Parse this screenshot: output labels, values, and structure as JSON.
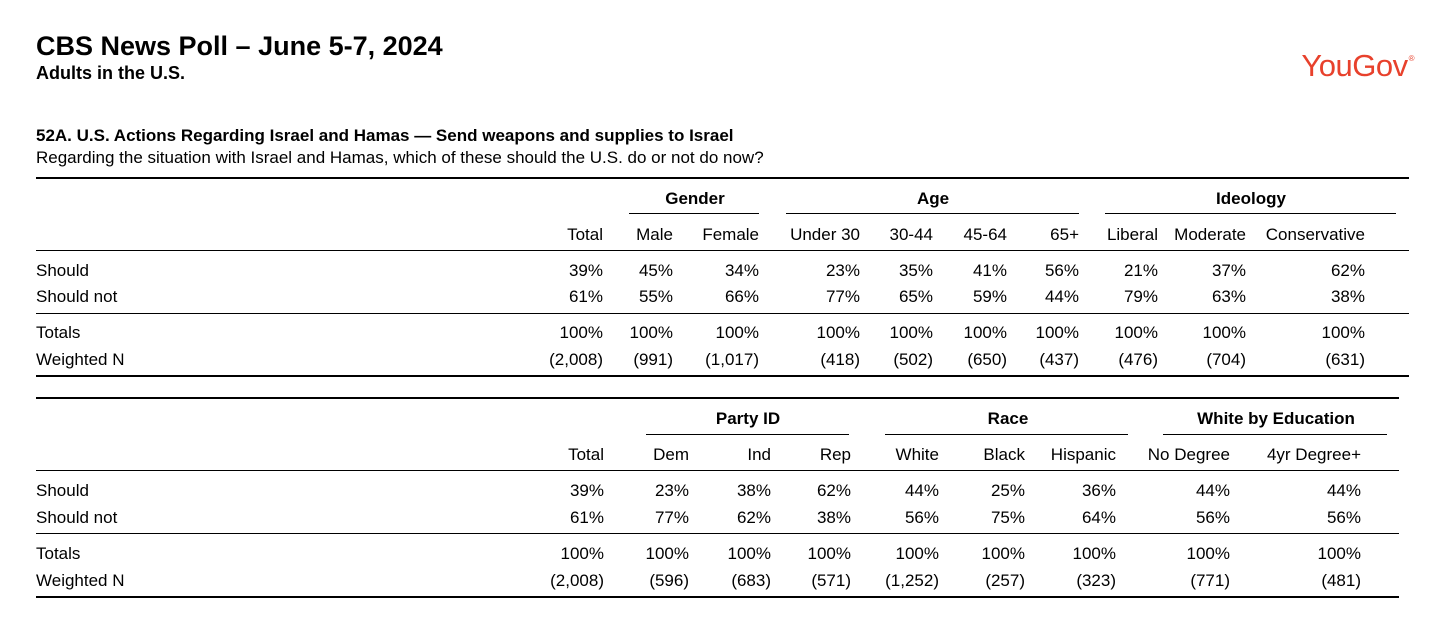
{
  "header": {
    "title": "CBS News Poll – June 5-7, 2024",
    "subtitle": "Adults in the U.S.",
    "logo_text": "YouGov",
    "logo_mark": "®",
    "brand_color": "#e8412c"
  },
  "question": {
    "title": "52A. U.S. Actions Regarding Israel and Hamas — Send weapons and supplies to Israel",
    "text": "Regarding the situation with Israel and Hamas, which of these should the U.S. do or not do now?"
  },
  "table1": {
    "groups": [
      "Gender",
      "Age",
      "Ideology"
    ],
    "columns": [
      "Total",
      "Male",
      "Female",
      "Under 30",
      "30-44",
      "45-64",
      "65+",
      "Liberal",
      "Moderate",
      "Conservative"
    ],
    "rows": [
      {
        "label": "Should",
        "values": [
          "39%",
          "45%",
          "34%",
          "23%",
          "35%",
          "41%",
          "56%",
          "21%",
          "37%",
          "62%"
        ]
      },
      {
        "label": "Should not",
        "values": [
          "61%",
          "55%",
          "66%",
          "77%",
          "65%",
          "59%",
          "44%",
          "79%",
          "63%",
          "38%"
        ]
      },
      {
        "label": "Totals",
        "values": [
          "100%",
          "100%",
          "100%",
          "100%",
          "100%",
          "100%",
          "100%",
          "100%",
          "100%",
          "100%"
        ]
      },
      {
        "label": "Weighted N",
        "values": [
          "(2,008)",
          "(991)",
          "(1,017)",
          "(418)",
          "(502)",
          "(650)",
          "(437)",
          "(476)",
          "(704)",
          "(631)"
        ]
      }
    ]
  },
  "table2": {
    "groups": [
      "Party ID",
      "Race",
      "White by Education"
    ],
    "columns": [
      "Total",
      "Dem",
      "Ind",
      "Rep",
      "White",
      "Black",
      "Hispanic",
      "No Degree",
      "4yr Degree+"
    ],
    "rows": [
      {
        "label": "Should",
        "values": [
          "39%",
          "23%",
          "38%",
          "62%",
          "44%",
          "25%",
          "36%",
          "44%",
          "44%"
        ]
      },
      {
        "label": "Should not",
        "values": [
          "61%",
          "77%",
          "62%",
          "38%",
          "56%",
          "75%",
          "64%",
          "56%",
          "56%"
        ]
      },
      {
        "label": "Totals",
        "values": [
          "100%",
          "100%",
          "100%",
          "100%",
          "100%",
          "100%",
          "100%",
          "100%",
          "100%"
        ]
      },
      {
        "label": "Weighted N",
        "values": [
          "(2,008)",
          "(596)",
          "(683)",
          "(571)",
          "(1,252)",
          "(257)",
          "(323)",
          "(771)",
          "(481)"
        ]
      }
    ]
  }
}
